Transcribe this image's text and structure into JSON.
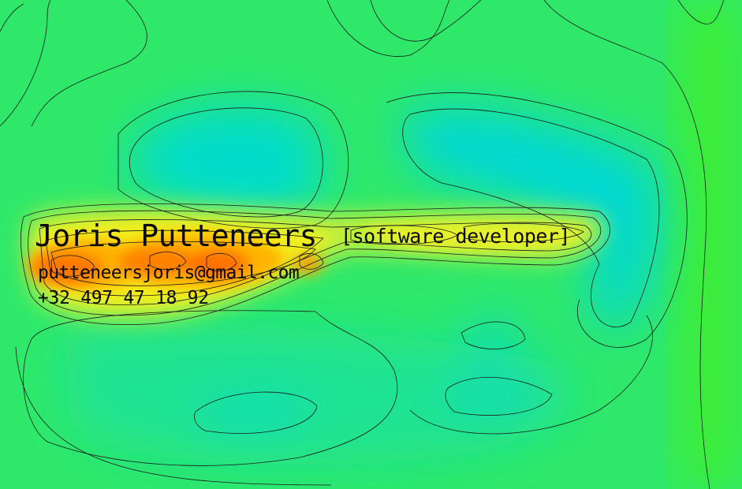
{
  "card": {
    "name": "Joris Putteneers",
    "role": "[software developer]",
    "email": "putteneersjoris@gmail.com",
    "phone": "+32 497 47 18 92"
  },
  "colors": {
    "field_green": "#2fe86a",
    "field_cyan": "#00e0d8",
    "hot_yellow": "#f2f21a",
    "hot_orange": "#ff9a00",
    "hot_red": "#ff5a00",
    "contour": "#1a1a1a",
    "text": "#0a0a0a"
  }
}
